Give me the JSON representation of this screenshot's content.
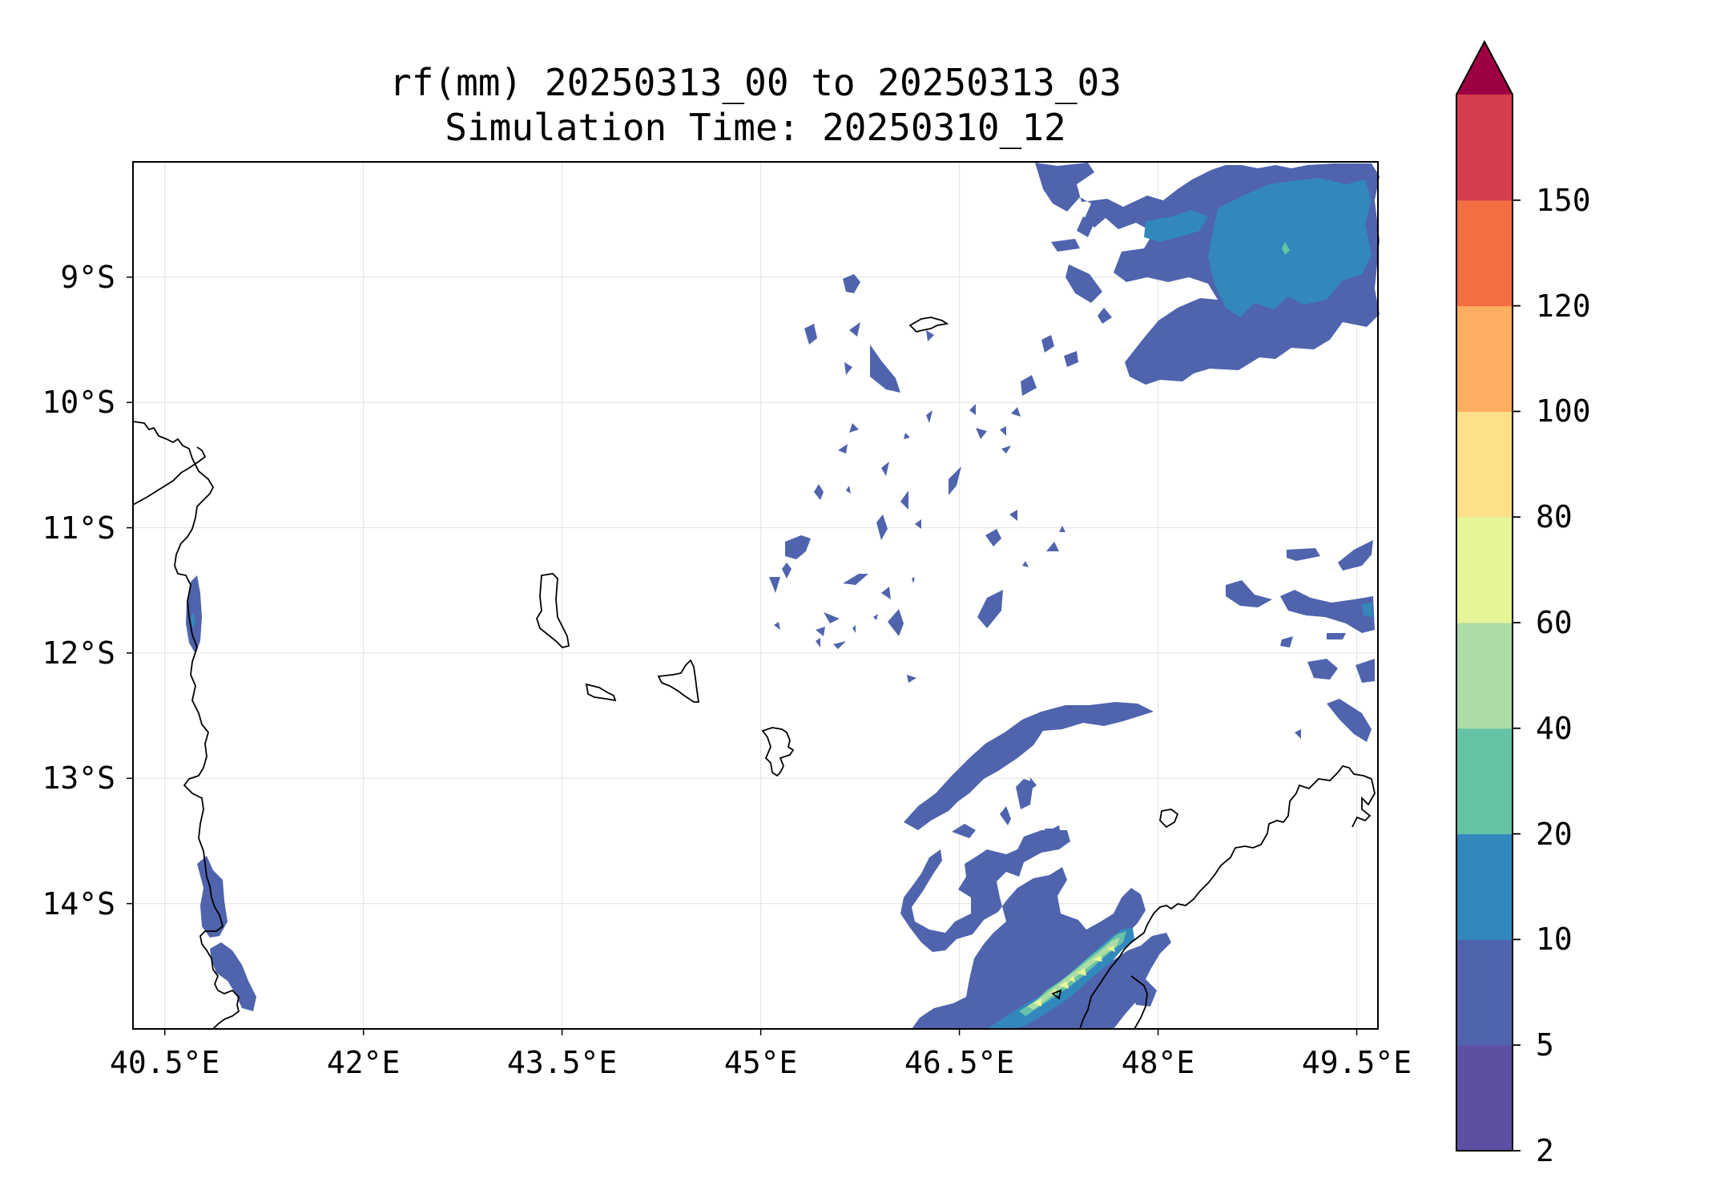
{
  "map": {
    "title": "rf(mm) 20250313_00 to 20250313_03",
    "subtitle": "Simulation Time: 20250310_12",
    "lon_range": [
      40.26,
      49.66
    ],
    "lat_range": [
      -15.0,
      -8.08
    ],
    "gridlines": true,
    "lon_ticks": [
      {
        "value": 40.5,
        "label": "40.5°E"
      },
      {
        "value": 42.0,
        "label": "42°E"
      },
      {
        "value": 43.5,
        "label": "43.5°E"
      },
      {
        "value": 45.0,
        "label": "45°E"
      },
      {
        "value": 46.5,
        "label": "46.5°E"
      },
      {
        "value": 48.0,
        "label": "48°E"
      },
      {
        "value": 49.5,
        "label": "49.5°E"
      }
    ],
    "lat_ticks": [
      {
        "value": -9,
        "label": "9°S"
      },
      {
        "value": -10,
        "label": "10°S"
      },
      {
        "value": -11,
        "label": "11°S"
      },
      {
        "value": -12,
        "label": "12°S"
      },
      {
        "value": -13,
        "label": "13°S"
      },
      {
        "value": -14,
        "label": "14°S"
      }
    ]
  },
  "colorbar": {
    "levels": [
      2,
      5,
      10,
      20,
      40,
      60,
      80,
      100,
      120,
      150
    ],
    "labels": [
      "2",
      "5",
      "10",
      "20",
      "40",
      "60",
      "80",
      "100",
      "120",
      "150"
    ],
    "colors": [
      "#5e4fa2",
      "#4f64ad",
      "#3288bd",
      "#66c2a5",
      "#abdda4",
      "#e6f598",
      "#fee08b",
      "#fdae61",
      "#f46d43",
      "#d53e4f"
    ],
    "over_color": "#9e0142",
    "extend": "max"
  }
}
